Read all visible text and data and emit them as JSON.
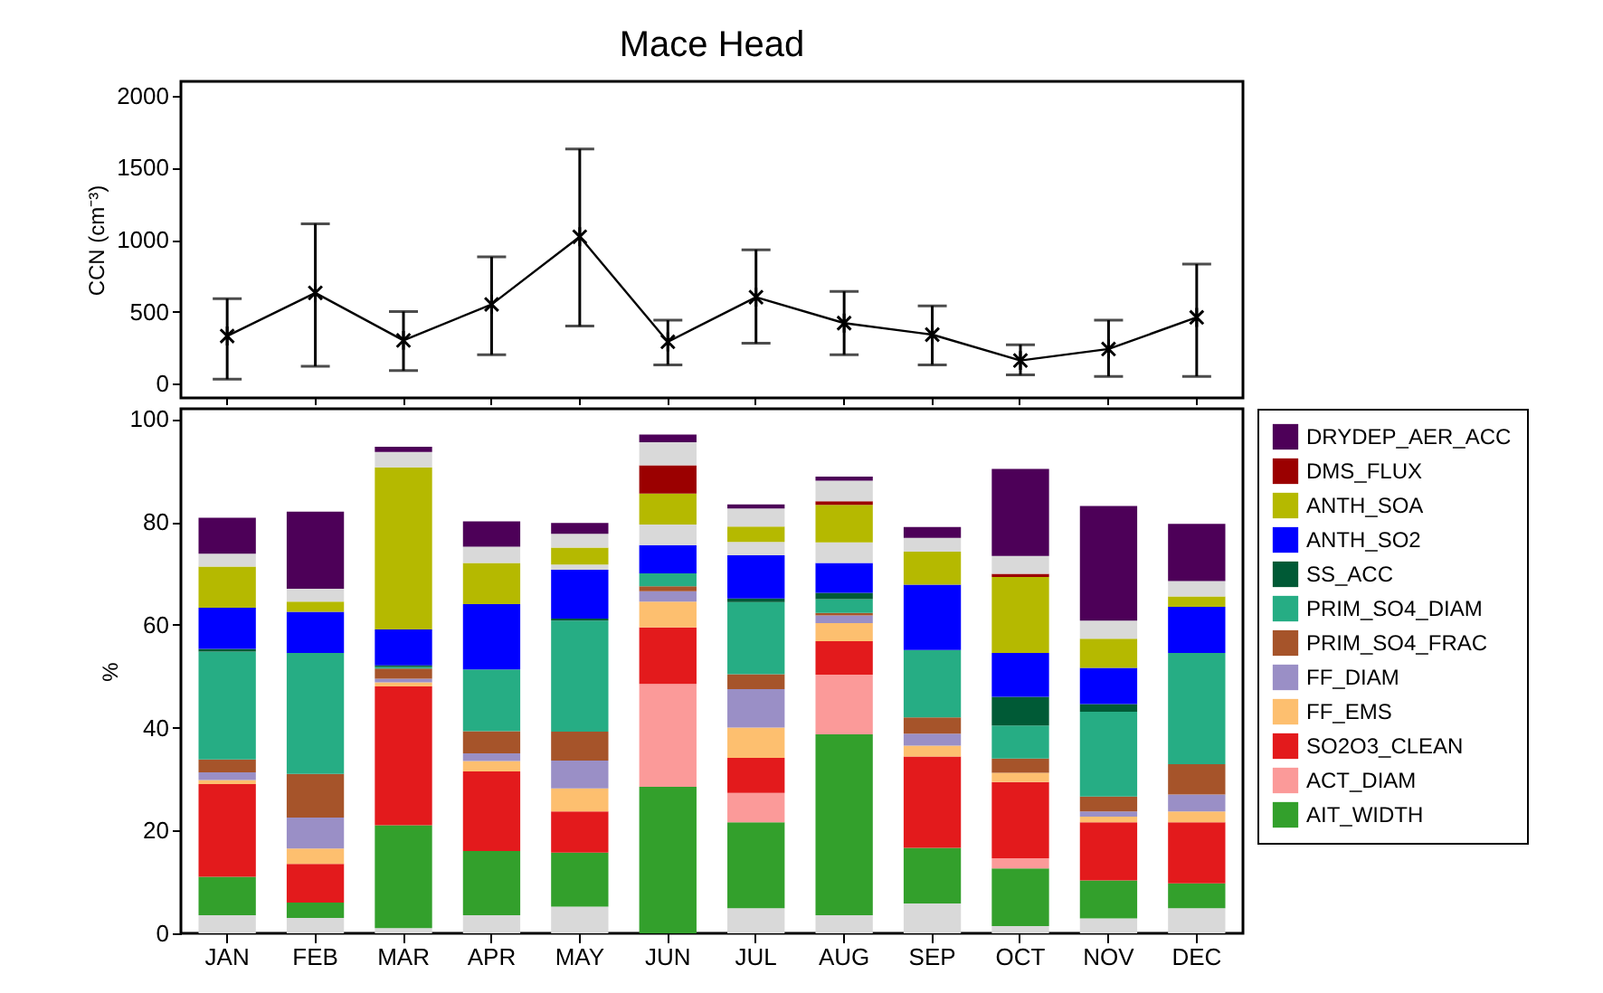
{
  "chart_data": [
    {
      "type": "line",
      "title": "Mace Head",
      "ylabel": "CCN (cm⁻³)",
      "categories": [
        null,
        null,
        null,
        null,
        null,
        null,
        null,
        null,
        null,
        null,
        null,
        null
      ],
      "series": [
        {
          "color": "#000000",
          "values": [
            330,
            630,
            300,
            550,
            1020,
            290,
            600,
            420,
            340,
            160,
            240,
            460
          ],
          "errors": [
            [
              30,
              590
            ],
            [
              120,
              1110
            ],
            [
              90,
              500
            ],
            [
              200,
              880
            ],
            [
              400,
              1630
            ],
            [
              130,
              440
            ],
            [
              280,
              930
            ],
            [
              200,
              640
            ],
            [
              130,
              540
            ],
            [
              60,
              270
            ],
            [
              50,
              440
            ],
            [
              50,
              830
            ]
          ]
        }
      ],
      "ylim": [
        -100,
        2100
      ],
      "yticks": [
        0,
        500,
        1000,
        1500,
        2000
      ],
      "marker": "cross",
      "line_style": "solid",
      "tick_labels": "y"
    },
    {
      "type": "bar",
      "ylabel": "%",
      "stacked": true,
      "legend": "right",
      "categories": [
        "JAN",
        "FEB",
        "MAR",
        "APR",
        "MAY",
        "JUN",
        "JUL",
        "AUG",
        "SEP",
        "OCT",
        "NOV",
        "DEC"
      ],
      "ylim": [
        0,
        102
      ],
      "yticks": [
        0,
        20,
        40,
        60,
        80,
        100
      ],
      "series": [
        {
          "color": "#d9d9d9",
          "values": [
            3.5,
            3,
            1,
            3.5,
            5.2,
            0,
            4.9,
            3.5,
            5.8,
            1.4,
            2.9,
            4.9
          ]
        },
        {
          "name": "AIT_WIDTH",
          "color": "#33a02c",
          "values": [
            7.5,
            3,
            20,
            12.5,
            10.5,
            28.5,
            16.7,
            35.2,
            10.8,
            11.2,
            7.4,
            4.8
          ]
        },
        {
          "name": "ACT_DIAM",
          "color": "#fb9a99",
          "values": [
            0,
            0,
            0,
            0,
            0,
            20,
            5.7,
            11.6,
            0,
            2,
            0,
            0
          ]
        },
        {
          "name": "SO2O3_CLEAN",
          "color": "#e31a1c",
          "values": [
            18,
            7.5,
            27,
            15.5,
            8,
            11,
            6.8,
            6.5,
            17.8,
            14.8,
            11.3,
            11.9
          ]
        },
        {
          "name": "FF_EMS",
          "color": "#fdbf6f",
          "values": [
            0.8,
            3,
            0.8,
            2,
            4.5,
            5,
            5.9,
            3.5,
            2.1,
            1.8,
            1.1,
            2.1
          ]
        },
        {
          "name": "FF_DIAM",
          "color": "#9a8fc6",
          "values": [
            1.5,
            6,
            0.7,
            1.5,
            5.4,
            2,
            7.5,
            1.5,
            2.3,
            0,
            1,
            3.3
          ]
        },
        {
          "name": "PRIM_SO4_FRAC",
          "color": "#a6542a",
          "values": [
            2.5,
            8.5,
            2,
            4.3,
            5.6,
            1,
            2.9,
            0.5,
            3.2,
            2.8,
            2.9,
            5.9
          ]
        },
        {
          "name": "PRIM_SO4_DIAM",
          "color": "#26ad84",
          "values": [
            21,
            23.5,
            0.3,
            12,
            21.6,
            2.5,
            14,
            2.7,
            13.1,
            6.4,
            16.5,
            21.6
          ]
        },
        {
          "name": "SS_ACC",
          "color": "#005a36",
          "values": [
            0.5,
            0,
            0.3,
            0,
            0.4,
            0,
            0.7,
            1.2,
            0,
            5.6,
            1.5,
            0
          ]
        },
        {
          "name": "ANTH_SO2",
          "color": "#0000ff",
          "values": [
            8,
            8,
            7,
            12.7,
            9.5,
            5.5,
            8.4,
            5.8,
            12.7,
            8.5,
            7,
            9
          ]
        },
        {
          "color": "#d9d9d9",
          "values": [
            0,
            0,
            0,
            0,
            1,
            4,
            2.6,
            4,
            0,
            0,
            0,
            0
          ]
        },
        {
          "name": "ANTH_SOA",
          "color": "#b5b900",
          "values": [
            8,
            2,
            31.5,
            8,
            3.3,
            6,
            3,
            7.3,
            6.4,
            14.8,
            5.7,
            2
          ]
        },
        {
          "name": "DMS_FLUX",
          "color": "#9b0000",
          "values": [
            0,
            0,
            0,
            0,
            0,
            5.5,
            0,
            0.7,
            0,
            0.6,
            0,
            0
          ]
        },
        {
          "color": "#d9d9d9",
          "values": [
            2.5,
            2.5,
            3,
            3.2,
            2.7,
            4.5,
            3.5,
            4,
            2.7,
            3.5,
            3.5,
            3
          ]
        },
        {
          "name": "DRYDEP_AER_ACC",
          "color": "#4d0058",
          "values": [
            7,
            15,
            1,
            4.9,
            2.1,
            1.5,
            0.8,
            0.8,
            2.1,
            16.9,
            22.3,
            11.1
          ]
        }
      ]
    }
  ]
}
